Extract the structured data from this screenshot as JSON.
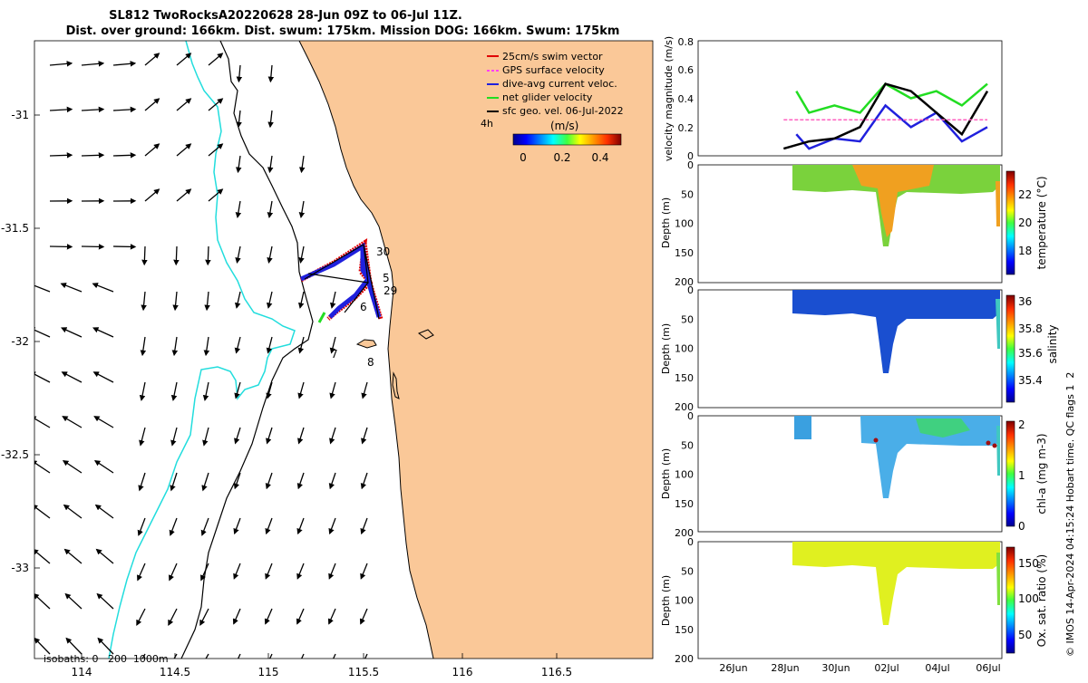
{
  "title": {
    "line1": "SL812 TwoRocksA20220628 28-Jun 09Z to 06-Jul 11Z.",
    "line2": "Dist. over ground: 166km. Dist. swum: 175km. Mission DOG: 166km. Swum: 175km"
  },
  "map": {
    "x_ticks": [
      "114",
      "114.5",
      "115",
      "115.5",
      "116",
      "116.5"
    ],
    "y_ticks": [
      "-31",
      "-31.5",
      "-32",
      "-32.5",
      "-33"
    ],
    "isobaths_label": "isobaths: 0   200  1000m",
    "legend": [
      {
        "label": "25cm/s swim vector",
        "color": "#e00000"
      },
      {
        "label": "GPS surface velocity",
        "color": "#ff40ff"
      },
      {
        "label": "dive-avg current veloc.",
        "color": "#2020dd"
      },
      {
        "label": "net glider velocity",
        "color": "#22dd22"
      },
      {
        "label": "sfc geo. vel. 06-Jul-2022",
        "color": "#000000"
      }
    ],
    "hours_label": "4h",
    "colorbar": {
      "unit": "(m/s)",
      "ticks": [
        "0",
        "0.2",
        "0.4"
      ]
    },
    "day_labels": [
      {
        "text": "30"
      },
      {
        "text": "5"
      },
      {
        "text": "29"
      },
      {
        "text": "6"
      },
      {
        "text": "7"
      },
      {
        "text": "8"
      }
    ],
    "colors": {
      "land": "#fac898",
      "isobath_shallow": "#000000",
      "isobath_deep": "#22dddd"
    }
  },
  "right_panels": {
    "date_ticks": [
      "26Jun",
      "28Jun",
      "30Jun",
      "02Jul",
      "04Jul",
      "06Jul"
    ],
    "velocity": {
      "ylabel": "velocity magnitude (m/s)",
      "y_ticks": [
        "0",
        "0.2",
        "0.4",
        "0.6",
        "0.8"
      ]
    },
    "depth_panels": [
      {
        "ylabel": "Depth (m)",
        "cbar_label": "temperature (°C)",
        "cbar_ticks": [
          "22",
          "20",
          "18"
        ]
      },
      {
        "ylabel": "Depth (m)",
        "cbar_label": "salinity",
        "cbar_ticks": [
          "36",
          "35.8",
          "35.6",
          "35.4"
        ]
      },
      {
        "ylabel": "Depth (m)",
        "cbar_label": "chl-a (mg m-3)",
        "cbar_ticks": [
          "2",
          "1",
          "0"
        ]
      },
      {
        "ylabel": "Depth (m)",
        "cbar_label": "Ox. sat. ratio (%)",
        "cbar_ticks": [
          "150",
          "100",
          "50"
        ]
      }
    ],
    "depth_ticks": [
      "0",
      "50",
      "100",
      "150",
      "200"
    ]
  },
  "footer": {
    "credit": "© IMOS 14-Apr-2024 04:15:24 Hobart time. QC flags 1  2"
  },
  "chart_data": [
    {
      "type": "scatter",
      "xlim": [
        113.75,
        116.95
      ],
      "ylim": [
        -33.4,
        -30.7
      ],
      "xlabel": "",
      "ylabel": "",
      "glider_track_waypoints": [
        [
          115.18,
          -31.72
        ],
        [
          115.5,
          -31.58
        ],
        [
          115.52,
          -31.72
        ],
        [
          115.43,
          -31.82
        ],
        [
          115.28,
          -31.92
        ],
        [
          115.55,
          -31.9
        ]
      ]
    },
    {
      "type": "line",
      "xlim": [
        "25Jun",
        "06Jul"
      ],
      "ylim": [
        0,
        0.8
      ],
      "series": [
        {
          "name": "net glider velocity",
          "color": "#22dd22",
          "x": [
            "28Jun 12",
            "29Jun",
            "30Jun",
            "01Jul",
            "02Jul",
            "03Jul",
            "04Jul",
            "05Jul",
            "06Jul"
          ],
          "values": [
            0.45,
            0.3,
            0.35,
            0.3,
            0.5,
            0.4,
            0.45,
            0.35,
            0.5
          ]
        },
        {
          "name": "dive-avg current veloc.",
          "color": "#2020dd",
          "x": [
            "28Jun 12",
            "29Jun",
            "30Jun",
            "01Jul",
            "02Jul",
            "03Jul",
            "04Jul",
            "05Jul",
            "06Jul"
          ],
          "values": [
            0.15,
            0.05,
            0.12,
            0.1,
            0.35,
            0.2,
            0.3,
            0.1,
            0.2
          ]
        },
        {
          "name": "sfc geo. vel. 06-Jul-2022",
          "color": "#000000",
          "x": [
            "28Jun",
            "29Jun",
            "30Jun",
            "01Jul",
            "02Jul",
            "03Jul",
            "04Jul",
            "05Jul",
            "06Jul"
          ],
          "values": [
            0.05,
            0.1,
            0.12,
            0.2,
            0.5,
            0.45,
            0.3,
            0.15,
            0.45
          ]
        },
        {
          "name": "GPS surface velocity",
          "color": "#ff60c0",
          "x": [
            "28Jun",
            "06Jul"
          ],
          "values": [
            0.25,
            0.25
          ]
        }
      ]
    }
  ]
}
